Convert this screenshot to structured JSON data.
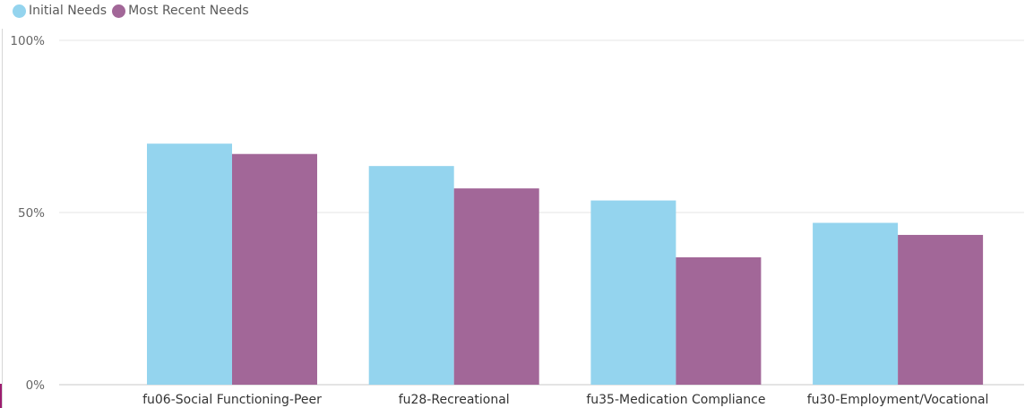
{
  "chart_data": {
    "type": "bar",
    "categories": [
      "fu06-Social Functioning-Peer",
      "fu28-Recreational",
      "fu35-Medication Compliance",
      "fu30-Employment/Vocational"
    ],
    "series": [
      {
        "name": "Initial Needs",
        "color": "#94D4EE",
        "values": [
          70,
          63.5,
          53.5,
          47
        ]
      },
      {
        "name": "Most Recent Needs",
        "color": "#A26798",
        "values": [
          67,
          57,
          37,
          43.5
        ]
      }
    ],
    "ylim": [
      0,
      100
    ],
    "yticks": [
      "0%",
      "50%",
      "100%"
    ],
    "ytick_values": [
      0,
      50,
      100
    ],
    "grid": true,
    "legend_position": "top-left"
  },
  "accent_color": "#9B1C6E"
}
